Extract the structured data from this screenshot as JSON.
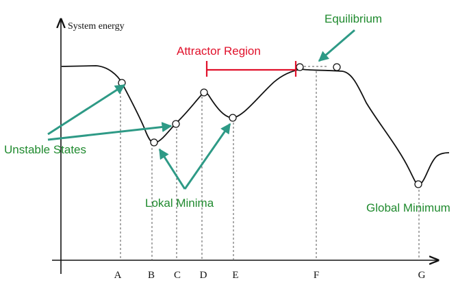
{
  "y_axis_label": "System energy",
  "x_ticks": [
    "A",
    "B",
    "C",
    "D",
    "E",
    "F",
    "G"
  ],
  "annotations": {
    "equilibrium": "Equilibrium",
    "attractor_region": "Attractor Region",
    "unstable_states": "Unstable States",
    "local_minima": "Lokal Minima",
    "global_minimum": "Global Minimum"
  },
  "colors": {
    "curve": "#111111",
    "annotation_green": "#1f8a2e",
    "arrow_teal": "#2e9a86",
    "attractor_red": "#e0102a"
  }
}
